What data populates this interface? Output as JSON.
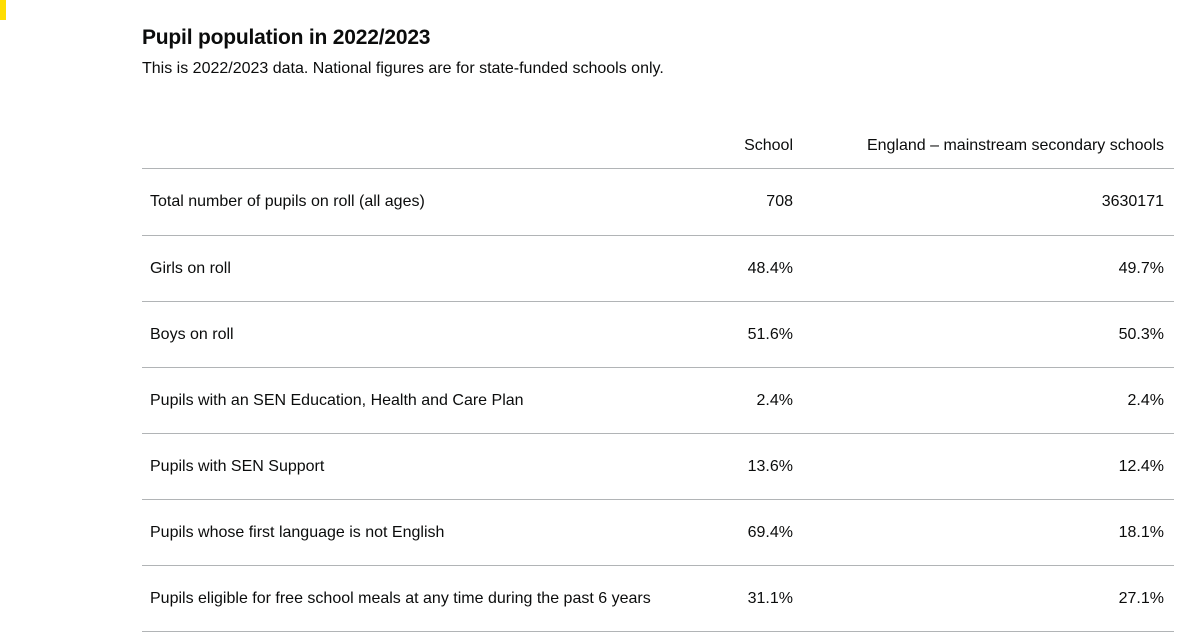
{
  "section": {
    "title": "Pupil population in 2022/2023",
    "subtitle": "This is 2022/2023 data. National figures are for state-funded schools only."
  },
  "table": {
    "headers": {
      "measure": "",
      "school": "School",
      "england": "England – mainstream secondary schools"
    },
    "rows": [
      {
        "label": "Total number of pupils on roll (all ages)",
        "school": "708",
        "england": "3630171"
      },
      {
        "label": "Girls on roll",
        "school": "48.4%",
        "england": "49.7%"
      },
      {
        "label": "Boys on roll",
        "school": "51.6%",
        "england": "50.3%"
      },
      {
        "label": "Pupils with an SEN Education, Health and Care Plan",
        "school": "2.4%",
        "england": "2.4%"
      },
      {
        "label": "Pupils with SEN Support",
        "school": "13.6%",
        "england": "12.4%"
      },
      {
        "label": "Pupils whose first language is not English",
        "school": "69.4%",
        "england": "18.1%"
      },
      {
        "label": "Pupils eligible for free school meals at any time during the past 6 years",
        "school": "31.1%",
        "england": "27.1%"
      }
    ]
  },
  "colors": {
    "focus": "#ffdd00",
    "text": "#0b0c0c",
    "border": "#b1b4b6"
  }
}
